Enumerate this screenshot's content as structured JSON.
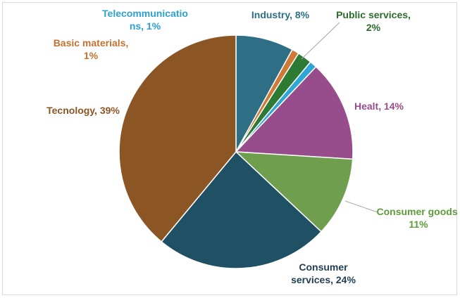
{
  "chart_data": {
    "type": "pie",
    "title": "",
    "legend": "none",
    "slices": [
      {
        "name": "Industry",
        "value": 8,
        "label": "Industry, 8%",
        "lines": [
          "Industry, 8%"
        ],
        "color": "#2e6f86",
        "label_color": "#2e6f86"
      },
      {
        "name": "Basic materials",
        "value": 1,
        "label": "Basic materials, 1%",
        "lines": [
          "Basic materials,",
          "1%"
        ],
        "color": "#d07a37",
        "label_color": "#c0722f"
      },
      {
        "name": "Public services",
        "value": 2,
        "label": "Public services, 2%",
        "lines": [
          "Public services,",
          "2%"
        ],
        "color": "#2d7a34",
        "label_color": "#2d6a2c"
      },
      {
        "name": "Telecommunications",
        "value": 1,
        "label": "Telecommunicatio ns, 1%",
        "lines": [
          "Telecommunicatio",
          "ns, 1%"
        ],
        "color": "#2fa7d6",
        "label_color": "#2aa2cf"
      },
      {
        "name": "Healt",
        "value": 14,
        "label": "Healt, 14%",
        "lines": [
          "Healt, 14%"
        ],
        "color": "#974d8c",
        "label_color": "#974d8c"
      },
      {
        "name": "Consumer goods",
        "value": 11,
        "label": "Consumer goods, 11%",
        "lines": [
          "Consumer goods,",
          "11%"
        ],
        "color": "#6e9e4e",
        "label_color": "#5f9a3a"
      },
      {
        "name": "Consumer services",
        "value": 24,
        "label": "Consumer services, 24%",
        "lines": [
          "Consumer",
          "services, 24%"
        ],
        "color": "#1f5064",
        "label_color": "#1f3e55"
      },
      {
        "name": "Tecnology",
        "value": 39,
        "label": "Tecnology, 39%",
        "lines": [
          "Tecnology, 39%"
        ],
        "color": "#8b5524",
        "label_color": "#8b5524"
      }
    ]
  }
}
